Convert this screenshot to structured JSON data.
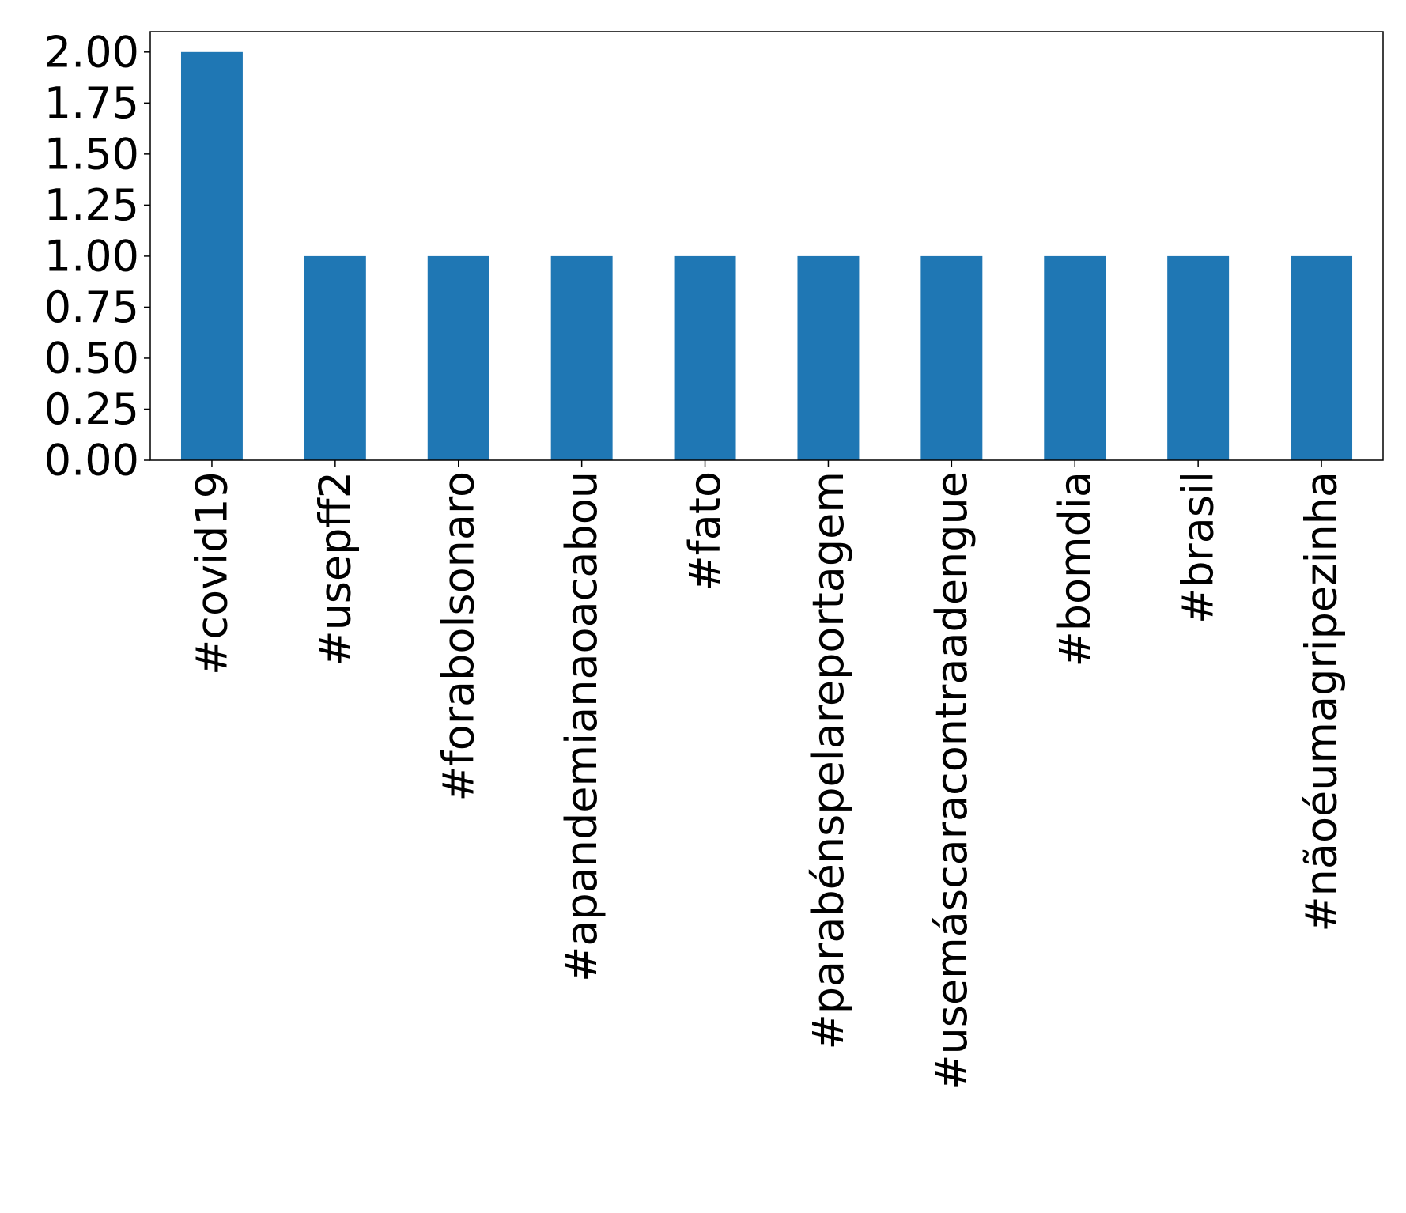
{
  "chart_data": {
    "type": "bar",
    "title": "",
    "xlabel": "",
    "ylabel": "",
    "categories": [
      "#covid19",
      "#usepff2",
      "#forabolsonaro",
      "#apandemianaoacabou",
      "#fato",
      "#parabénspelareportagem",
      "#usemáscaracontraadengue",
      "#bomdia",
      "#brasil",
      "#nãoéumagripezinha"
    ],
    "values": [
      2,
      1,
      1,
      1,
      1,
      1,
      1,
      1,
      1,
      1
    ],
    "ylim": [
      0,
      2.1
    ],
    "yticks": [
      "0.00",
      "0.25",
      "0.50",
      "0.75",
      "1.00",
      "1.25",
      "1.50",
      "1.75",
      "2.00"
    ],
    "grid": false,
    "legend": "none",
    "bar_color": "#1f77b4"
  }
}
